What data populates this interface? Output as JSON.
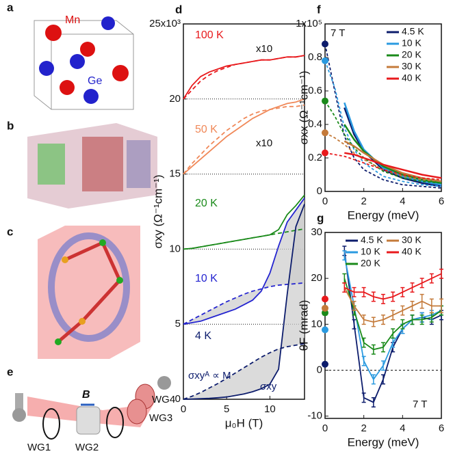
{
  "illustrations": {
    "a": {
      "label": "a",
      "mn": "Mn",
      "ge": "Ge"
    },
    "b": {
      "label": "b"
    },
    "c": {
      "label": "c"
    },
    "e": {
      "label": "e",
      "field": "B",
      "wg1": "WG1",
      "wg2": "WG2",
      "wg3": "WG3",
      "wg4": "WG4"
    }
  },
  "chart_data": [
    {
      "type": "line",
      "label": "d",
      "xlabel": "μ₀H (T)",
      "ylabel": "σxy (Ω⁻¹cm⁻¹)",
      "xlim": [
        0,
        14
      ],
      "xticks": [
        0,
        5,
        10
      ],
      "ylim": [
        0,
        25
      ],
      "yticks": [
        0,
        5,
        10,
        15,
        20,
        {
          "value": 25,
          "label": "25x10³"
        }
      ],
      "grid": "dotted",
      "x": [
        0,
        1,
        2,
        3,
        4,
        5,
        6,
        7,
        8,
        9,
        10,
        11,
        12,
        13,
        14
      ],
      "series": [
        {
          "name": "100 K",
          "color": "#e8191c",
          "values": [
            20,
            20.9,
            21.5,
            21.8,
            22.0,
            22.2,
            22.3,
            22.4,
            22.5,
            22.6,
            22.6,
            22.7,
            22.8,
            22.8,
            22.9
          ],
          "dashed_values": [
            20,
            20.6,
            21.2,
            21.6,
            21.9,
            22.1,
            22.3,
            22.4,
            22.5,
            22.6,
            22.6,
            22.7,
            22.8,
            22.8,
            22.9
          ]
        },
        {
          "name": "50 K",
          "color": "#f08858",
          "values": [
            15,
            15.5,
            16.0,
            16.5,
            17.0,
            17.5,
            17.9,
            18.3,
            18.7,
            19.0,
            19.3,
            19.5,
            19.7,
            19.8,
            20.0
          ],
          "dashed_values": [
            15,
            15.7,
            16.3,
            16.9,
            17.4,
            17.9,
            18.3,
            18.7,
            19.0,
            19.2,
            19.3,
            19.4,
            19.5,
            19.5,
            19.6
          ]
        },
        {
          "name": "20 K",
          "color": "#1a8a1a",
          "values": [
            10,
            10.05,
            10.15,
            10.25,
            10.35,
            10.45,
            10.55,
            10.65,
            10.75,
            10.85,
            10.95,
            11.3,
            12.3,
            12.9,
            13.6
          ],
          "dashed_values": [
            10,
            10.05,
            10.15,
            10.25,
            10.35,
            10.45,
            10.55,
            10.65,
            10.75,
            10.85,
            10.95,
            11.05,
            11.15,
            11.25,
            11.35
          ]
        },
        {
          "name": "10 K",
          "color": "#2424d0",
          "values": [
            5,
            5.1,
            5.2,
            5.4,
            5.6,
            5.8,
            6.0,
            6.3,
            6.6,
            7.2,
            8.4,
            10.2,
            11.8,
            12.6,
            13.4
          ],
          "dashed_values": [
            5,
            5.3,
            5.6,
            5.9,
            6.2,
            6.5,
            6.75,
            7.0,
            7.2,
            7.35,
            7.5,
            7.6,
            7.65,
            7.7,
            7.75
          ]
        },
        {
          "name": "4 K",
          "color": "#0c1c6c",
          "values": [
            0,
            0.02,
            0.04,
            0.06,
            0.1,
            0.15,
            0.25,
            0.35,
            0.5,
            0.7,
            1.0,
            2.0,
            7.0,
            11.5,
            13.0
          ],
          "dashed_values": [
            0,
            0.2,
            0.45,
            0.75,
            1.05,
            1.4,
            1.75,
            2.1,
            2.45,
            2.8,
            3.1,
            3.35,
            3.5,
            3.6,
            3.7
          ]
        }
      ],
      "annotations": [
        "x10",
        "x10",
        "σxyᴬ ∝ M",
        "σxy"
      ]
    },
    {
      "type": "line",
      "label": "f",
      "title": "7 T",
      "xlabel": "Energy (meV)",
      "ylabel": "σxx (Ω⁻¹cm⁻¹)",
      "xlim": [
        0,
        6
      ],
      "xticks": [
        0,
        2,
        4,
        6
      ],
      "ylim": [
        0,
        1
      ],
      "yticks": [
        0,
        0.2,
        0.4,
        0.6,
        0.8,
        {
          "value": 1,
          "label": "1x10⁵"
        }
      ],
      "legend": "upper right",
      "dc_x": 0,
      "x": [
        1,
        1.5,
        2,
        3,
        4,
        5,
        6
      ],
      "fit_x": [
        0,
        0.5,
        1,
        1.5,
        2,
        3,
        4,
        5,
        6
      ],
      "series": [
        {
          "name": "4.5 K",
          "color": "#0c1c6c",
          "dc": 0.88,
          "values": [
            0.5,
            0.34,
            0.24,
            0.13,
            0.08,
            0.05,
            0.03
          ],
          "fit_values": [
            0.88,
            0.6,
            0.33,
            0.2,
            0.13,
            0.07,
            0.04,
            0.03,
            0.02
          ]
        },
        {
          "name": "10 K",
          "color": "#2a9ae0",
          "dc": 0.78,
          "values": [
            0.53,
            0.36,
            0.25,
            0.14,
            0.09,
            0.06,
            0.04
          ],
          "fit_values": [
            0.78,
            0.62,
            0.38,
            0.25,
            0.17,
            0.09,
            0.06,
            0.04,
            0.03
          ]
        },
        {
          "name": "20 K",
          "color": "#1a8a1a",
          "dc": 0.54,
          "values": [
            0.4,
            0.31,
            0.24,
            0.15,
            0.1,
            0.07,
            0.05
          ],
          "fit_values": [
            0.54,
            0.45,
            0.34,
            0.26,
            0.2,
            0.12,
            0.08,
            0.06,
            0.05
          ]
        },
        {
          "name": "30 K",
          "color": "#c47a3a",
          "dc": 0.35,
          "values": [
            0.3,
            0.27,
            0.23,
            0.16,
            0.11,
            0.08,
            0.06
          ],
          "fit_values": [
            0.35,
            0.32,
            0.28,
            0.23,
            0.19,
            0.13,
            0.09,
            0.07,
            0.06
          ]
        },
        {
          "name": "40 K",
          "color": "#e8191c",
          "dc": 0.23,
          "values": [
            0.23,
            0.22,
            0.2,
            0.16,
            0.13,
            0.1,
            0.08
          ],
          "fit_values": [
            0.23,
            0.22,
            0.21,
            0.19,
            0.17,
            0.13,
            0.1,
            0.08,
            0.07
          ]
        }
      ]
    },
    {
      "type": "errorbar",
      "label": "g",
      "title": "7 T",
      "xlabel": "Energy (meV)",
      "ylabel": "θF (mrad)",
      "xlim": [
        0,
        6
      ],
      "xticks": [
        0,
        2,
        4,
        6
      ],
      "ylim": [
        -10.5,
        30
      ],
      "yticks": [
        -10,
        0,
        10,
        20,
        30
      ],
      "zero_line": true,
      "legend": "upper left",
      "dc_x": 0,
      "x": [
        1,
        1.5,
        2,
        2.5,
        3,
        3.5,
        4,
        4.5,
        5,
        5.5,
        6
      ],
      "series": [
        {
          "name": "4.5 K",
          "color": "#0c1c6c",
          "dc": 1.3,
          "values": [
            26,
            10,
            -6,
            -7,
            -2,
            5,
            9,
            11,
            11.5,
            11,
            12
          ],
          "errors": [
            1,
            1,
            1,
            1,
            1,
            1,
            1,
            1,
            1,
            1,
            1
          ]
        },
        {
          "name": "10 K",
          "color": "#2a9ae0",
          "dc": 8.8,
          "values": [
            25,
            14,
            2,
            -2,
            1,
            6,
            9,
            11,
            11.5,
            12,
            13
          ],
          "errors": [
            1,
            1,
            1,
            1,
            1,
            1,
            1,
            1,
            1,
            1,
            1
          ]
        },
        {
          "name": "20 K",
          "color": "#1a8a1a",
          "dc": 12.5,
          "values": [
            20,
            13,
            6,
            4.5,
            5,
            8,
            10,
            11,
            11,
            11.5,
            13
          ],
          "errors": [
            1,
            1,
            1,
            1,
            1,
            1,
            1,
            1,
            1,
            1,
            1
          ]
        },
        {
          "name": "30 K",
          "color": "#c47a3a",
          "dc": 13.5,
          "values": [
            18,
            14,
            11,
            10.5,
            11,
            12,
            13,
            14,
            15,
            14,
            14
          ],
          "errors": [
            1,
            1,
            1,
            1,
            1,
            1,
            1,
            1,
            1.5,
            1.5,
            1.5
          ]
        },
        {
          "name": "40 K",
          "color": "#e8191c",
          "dc": 15.5,
          "values": [
            18,
            17,
            17,
            16,
            15.5,
            16,
            17,
            18,
            19,
            20,
            21
          ],
          "errors": [
            1,
            1,
            1,
            1,
            1,
            1,
            1,
            1,
            1,
            1,
            1
          ]
        }
      ]
    }
  ]
}
